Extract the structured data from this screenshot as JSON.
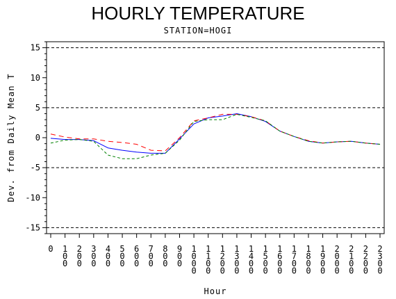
{
  "chart_data": {
    "type": "line",
    "title": "HOURLY TEMPERATURE",
    "subtitle": "STATION=HOGI",
    "xlabel": "Hour",
    "ylabel": "Dev. from Daily Mean T",
    "xlim": [
      0,
      2300
    ],
    "ylim": [
      -16,
      16
    ],
    "yticks": [
      -15,
      -10,
      -5,
      0,
      5,
      10,
      15
    ],
    "ytick_labels": [
      "-15",
      "-10",
      "-5",
      "0",
      "5",
      "10",
      "15"
    ],
    "xticks": [
      0,
      100,
      200,
      300,
      400,
      500,
      600,
      700,
      800,
      900,
      1000,
      1100,
      1200,
      1300,
      1400,
      1500,
      1600,
      1700,
      1800,
      1900,
      2000,
      2100,
      2200,
      2300
    ],
    "xtick_labels": [
      "0",
      "100",
      "200",
      "300",
      "400",
      "500",
      "600",
      "700",
      "800",
      "900",
      "1000",
      "1100",
      "1200",
      "1300",
      "1400",
      "1500",
      "1600",
      "1700",
      "1800",
      "1900",
      "2000",
      "2100",
      "2200",
      "2300"
    ],
    "reference_lines": [
      -15,
      -5,
      5,
      15
    ],
    "grid": false,
    "x": [
      0,
      100,
      200,
      300,
      400,
      500,
      600,
      700,
      800,
      900,
      1000,
      1100,
      1200,
      1300,
      1400,
      1500,
      1600,
      1700,
      1800,
      1900,
      2000,
      2100,
      2200,
      2300
    ],
    "series": [
      {
        "color": "#0000ff",
        "dash": "solid",
        "values": [
          -0.1,
          -0.3,
          -0.3,
          -0.5,
          -1.7,
          -2.1,
          -2.4,
          -2.6,
          -2.6,
          -0.2,
          2.3,
          3.3,
          3.6,
          4.0,
          3.5,
          2.7,
          1.1,
          0.2,
          -0.6,
          -0.9,
          -0.7,
          -0.6,
          -0.9,
          -1.1
        ]
      },
      {
        "color": "#ff0000",
        "dash": "long",
        "values": [
          0.6,
          0.1,
          -0.2,
          -0.2,
          -0.6,
          -0.8,
          -1.1,
          -2.1,
          -2.2,
          0.0,
          2.8,
          3.3,
          3.9,
          3.9,
          3.5,
          2.8,
          1.1,
          0.2,
          -0.5,
          -0.9,
          -0.7,
          -0.6,
          -0.9,
          -1.1
        ]
      },
      {
        "color": "#008000",
        "dash": "short",
        "values": [
          -0.9,
          -0.4,
          -0.3,
          -0.6,
          -2.9,
          -3.5,
          -3.5,
          -2.9,
          -2.6,
          -0.4,
          2.7,
          3.0,
          3.0,
          3.9,
          3.4,
          2.8,
          1.1,
          0.2,
          -0.6,
          -0.9,
          -0.7,
          -0.6,
          -0.9,
          -1.1
        ]
      }
    ]
  }
}
